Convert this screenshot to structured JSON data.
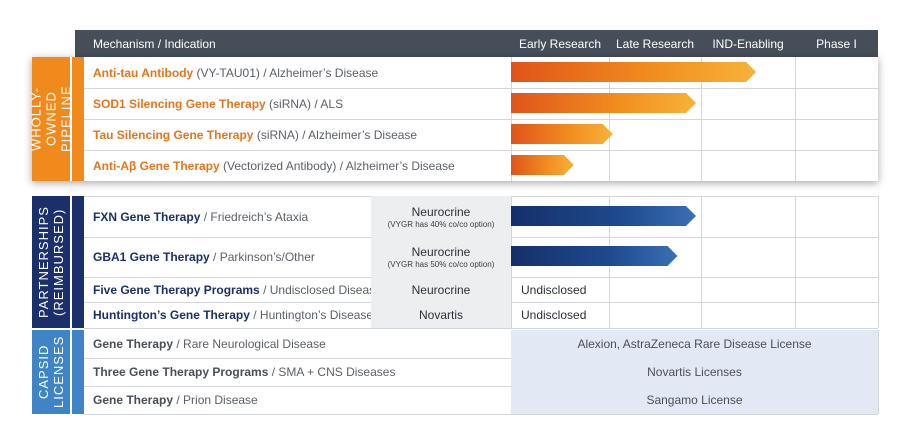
{
  "header": {
    "mechanism": "Mechanism / Indication",
    "stages": [
      "Early Research",
      "Late Research",
      "IND-Enabling",
      "Phase I"
    ]
  },
  "sections": {
    "wholly_owned": "WHOLLY-\nOWNED PIPELINE",
    "partnerships": "PARTNERSHIPS\n(REIMBURSED)",
    "capsid": "CAPSID\nLICENSES"
  },
  "rows": {
    "wholly_owned": [
      {
        "bold": "Anti-tau Antibody",
        "rest": " (VY-TAU01) / Alzheimer’s Disease"
      },
      {
        "bold": "SOD1 Silencing Gene Therapy",
        "rest": " (siRNA) / ALS"
      },
      {
        "bold": "Tau Silencing Gene Therapy",
        "rest": " (siRNA) / Alzheimer’s Disease"
      },
      {
        "bold": "Anti-Aβ Gene Therapy",
        "rest": " (Vectorized Antibody) / Alzheimer’s Disease"
      }
    ],
    "partnerships": [
      {
        "bold": "FXN Gene Therapy",
        "rest": " / Friedreich’s Ataxia",
        "partner": "Neurocrine",
        "note": "(VYGR has 40% co/co option)",
        "status": ""
      },
      {
        "bold": "GBA1 Gene Therapy",
        "rest": " / Parkinson’s/Other",
        "partner": "Neurocrine",
        "note": "(VYGR has 50% co/co option)",
        "status": ""
      },
      {
        "bold": "Five Gene Therapy Programs",
        "rest": " / Undisclosed Diseases",
        "partner": "Neurocrine",
        "note": "",
        "status": "Undisclosed"
      },
      {
        "bold": "Huntington’s Gene Therapy",
        "rest": " / Huntington’s Disease",
        "partner": "Novartis",
        "note": "",
        "status": "Undisclosed"
      }
    ],
    "capsid": [
      {
        "bold": "Gene Therapy",
        "rest": " / Rare Neurological Disease",
        "license": "Alexion, AstraZeneca Rare Disease License"
      },
      {
        "bold": "Three Gene Therapy Programs",
        "rest": " / SMA + CNS Diseases",
        "license": "Novartis Licenses"
      },
      {
        "bold": "Gene Therapy",
        "rest": " / Prion Disease",
        "license": "Sangamo License"
      }
    ]
  },
  "chart_data": {
    "type": "bar",
    "orientation": "horizontal",
    "x_axis_stages": [
      "Early Research",
      "Late Research",
      "IND-Enabling",
      "Phase I"
    ],
    "xlim": [
      0,
      4
    ],
    "grid": true,
    "legend": "none",
    "series": [
      {
        "categories": [
          "Anti-tau Antibody",
          "SOD1 Silencing Gene Therapy",
          "Tau Silencing Gene Therapy",
          "Anti-Aβ Gene Therapy"
        ],
        "values": [
          2.65,
          2.0,
          1.1,
          0.68
        ],
        "color": "#f08a1c"
      },
      {
        "categories": [
          "FXN Gene Therapy",
          "GBA1 Gene Therapy"
        ],
        "values": [
          2.0,
          1.8
        ],
        "color": "#1f4a8e"
      }
    ]
  },
  "colors": {
    "header": "#464e5a",
    "wholly_owned": "#f08a1c",
    "partnerships": "#1b2f6b",
    "capsid": "#3e84c6",
    "orange_bar": "#f08a1c",
    "blue_bar": "#1f4a8e"
  }
}
